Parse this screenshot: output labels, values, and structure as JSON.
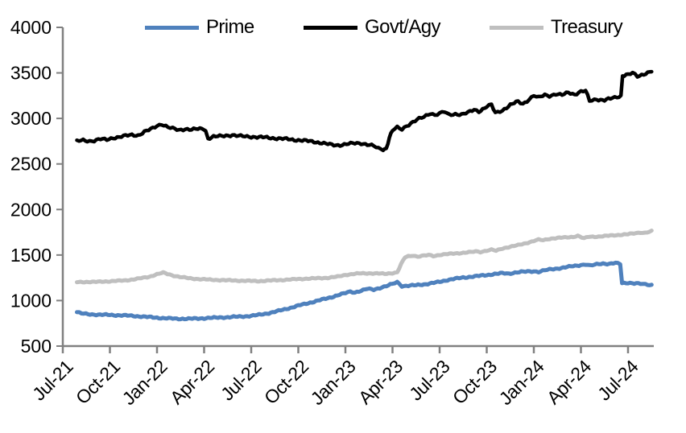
{
  "chart_data": {
    "type": "line",
    "title": "",
    "xlabel": "",
    "ylabel": "",
    "x_unit": "months since Jul-2021",
    "grid": false,
    "legend_position": "top",
    "axis_color": "#808080",
    "y_axis": {
      "min": 500,
      "max": 4000,
      "step": 500,
      "ticks": [
        4000,
        3500,
        3000,
        2500,
        2000,
        1500,
        1000,
        500
      ]
    },
    "x_axis": {
      "ticks": [
        {
          "label": "Jul-21",
          "m": 0
        },
        {
          "label": "Oct-21",
          "m": 3
        },
        {
          "label": "Jan-22",
          "m": 6
        },
        {
          "label": "Apr-22",
          "m": 9
        },
        {
          "label": "Jul-22",
          "m": 12
        },
        {
          "label": "Oct-22",
          "m": 15
        },
        {
          "label": "Jan-23",
          "m": 18
        },
        {
          "label": "Apr-23",
          "m": 21
        },
        {
          "label": "Jul-23",
          "m": 24
        },
        {
          "label": "Oct-23",
          "m": 27
        },
        {
          "label": "Jan-24",
          "m": 30
        },
        {
          "label": "Apr-24",
          "m": 33
        },
        {
          "label": "Jul-24",
          "m": 36
        }
      ]
    },
    "legend": [
      {
        "label": "Prime",
        "color": "#4F81BD"
      },
      {
        "label": "Govt/Agy",
        "color": "#000000"
      },
      {
        "label": "Treasury",
        "color": "#BFBFBF"
      }
    ],
    "series": [
      {
        "name": "Prime",
        "color": "#4F81BD",
        "width": 5,
        "points": [
          [
            0.9,
            872
          ],
          [
            1.2,
            858
          ],
          [
            1.6,
            850
          ],
          [
            2,
            847
          ],
          [
            2.5,
            844
          ],
          [
            3,
            842
          ],
          [
            3.5,
            839
          ],
          [
            4,
            836
          ],
          [
            4.5,
            831
          ],
          [
            5,
            825
          ],
          [
            5.5,
            818
          ],
          [
            6,
            812
          ],
          [
            6.5,
            806
          ],
          [
            7,
            802
          ],
          [
            7.5,
            800
          ],
          [
            8,
            800
          ],
          [
            8.5,
            802
          ],
          [
            9,
            806
          ],
          [
            9.5,
            810
          ],
          [
            10,
            814
          ],
          [
            10.5,
            817
          ],
          [
            11,
            821
          ],
          [
            11.5,
            826
          ],
          [
            12,
            832
          ],
          [
            12.5,
            843
          ],
          [
            13,
            858
          ],
          [
            13.5,
            876
          ],
          [
            14,
            898
          ],
          [
            14.5,
            920
          ],
          [
            15,
            944
          ],
          [
            15.5,
            966
          ],
          [
            16,
            988
          ],
          [
            16.5,
            1010
          ],
          [
            17,
            1032
          ],
          [
            17.5,
            1058
          ],
          [
            18,
            1082
          ],
          [
            18.3,
            1098
          ],
          [
            18.6,
            1090
          ],
          [
            19,
            1108
          ],
          [
            19.4,
            1128
          ],
          [
            19.8,
            1120
          ],
          [
            20.2,
            1140
          ],
          [
            20.6,
            1158
          ],
          [
            21,
            1182
          ],
          [
            21.3,
            1202
          ],
          [
            21.6,
            1160
          ],
          [
            22,
            1163
          ],
          [
            22.5,
            1168
          ],
          [
            23,
            1178
          ],
          [
            23.5,
            1190
          ],
          [
            24,
            1205
          ],
          [
            24.5,
            1226
          ],
          [
            25,
            1240
          ],
          [
            25.5,
            1252
          ],
          [
            26,
            1262
          ],
          [
            26.5,
            1270
          ],
          [
            27,
            1280
          ],
          [
            27.5,
            1292
          ],
          [
            28,
            1300
          ],
          [
            28.4,
            1296
          ],
          [
            28.8,
            1308
          ],
          [
            29.2,
            1314
          ],
          [
            29.6,
            1318
          ],
          [
            30,
            1322
          ],
          [
            30.3,
            1316
          ],
          [
            30.7,
            1332
          ],
          [
            31,
            1340
          ],
          [
            31.5,
            1352
          ],
          [
            32,
            1365
          ],
          [
            32.5,
            1378
          ],
          [
            33,
            1390
          ],
          [
            33.3,
            1398
          ],
          [
            33.6,
            1382
          ],
          [
            34,
            1398
          ],
          [
            34.4,
            1408
          ],
          [
            34.8,
            1402
          ],
          [
            35.2,
            1412
          ],
          [
            35.5,
            1400
          ],
          [
            35.62,
            1192
          ],
          [
            36,
            1196
          ],
          [
            36.4,
            1188
          ],
          [
            36.8,
            1183
          ],
          [
            37.1,
            1178
          ],
          [
            37.5,
            1172
          ]
        ]
      },
      {
        "name": "Govt/Agy",
        "color": "#000000",
        "width": 4.5,
        "points": [
          [
            0.9,
            2748
          ],
          [
            1.3,
            2760
          ],
          [
            1.7,
            2752
          ],
          [
            2,
            2758
          ],
          [
            2.4,
            2772
          ],
          [
            2.8,
            2765
          ],
          [
            3.2,
            2788
          ],
          [
            3.6,
            2796
          ],
          [
            4,
            2808
          ],
          [
            4.4,
            2820
          ],
          [
            4.8,
            2815
          ],
          [
            5.2,
            2852
          ],
          [
            5.6,
            2880
          ],
          [
            6,
            2920
          ],
          [
            6.3,
            2940
          ],
          [
            6.7,
            2902
          ],
          [
            7,
            2888
          ],
          [
            7.4,
            2872
          ],
          [
            7.8,
            2886
          ],
          [
            8.2,
            2876
          ],
          [
            8.6,
            2884
          ],
          [
            9,
            2886
          ],
          [
            9.1,
            2865
          ],
          [
            9.25,
            2778
          ],
          [
            9.6,
            2800
          ],
          [
            10,
            2803
          ],
          [
            10.4,
            2812
          ],
          [
            10.8,
            2818
          ],
          [
            11.2,
            2806
          ],
          [
            11.6,
            2802
          ],
          [
            12,
            2800
          ],
          [
            12.5,
            2794
          ],
          [
            13,
            2790
          ],
          [
            13.5,
            2783
          ],
          [
            14,
            2776
          ],
          [
            14.5,
            2770
          ],
          [
            15,
            2762
          ],
          [
            15.5,
            2753
          ],
          [
            16,
            2745
          ],
          [
            16.5,
            2730
          ],
          [
            17,
            2713
          ],
          [
            17.4,
            2706
          ],
          [
            17.8,
            2712
          ],
          [
            18.2,
            2720
          ],
          [
            18.6,
            2726
          ],
          [
            19,
            2728
          ],
          [
            19.4,
            2714
          ],
          [
            19.8,
            2697
          ],
          [
            20.1,
            2668
          ],
          [
            20.4,
            2660
          ],
          [
            20.6,
            2672
          ],
          [
            20.8,
            2790
          ],
          [
            21,
            2868
          ],
          [
            21.3,
            2898
          ],
          [
            21.6,
            2880
          ],
          [
            21.9,
            2920
          ],
          [
            22.3,
            2962
          ],
          [
            22.7,
            2995
          ],
          [
            23,
            3015
          ],
          [
            23.4,
            3058
          ],
          [
            23.7,
            3040
          ],
          [
            24,
            3055
          ],
          [
            24.3,
            3072
          ],
          [
            24.6,
            3036
          ],
          [
            25,
            3050
          ],
          [
            25.4,
            3044
          ],
          [
            25.8,
            3062
          ],
          [
            26.2,
            3095
          ],
          [
            26.5,
            3078
          ],
          [
            27,
            3130
          ],
          [
            27.3,
            3148
          ],
          [
            27.55,
            3058
          ],
          [
            28,
            3090
          ],
          [
            28.5,
            3148
          ],
          [
            29,
            3185
          ],
          [
            29.3,
            3160
          ],
          [
            29.7,
            3210
          ],
          [
            30,
            3252
          ],
          [
            30.3,
            3226
          ],
          [
            30.7,
            3258
          ],
          [
            31,
            3250
          ],
          [
            31.4,
            3268
          ],
          [
            31.8,
            3255
          ],
          [
            32.2,
            3285
          ],
          [
            32.6,
            3265
          ],
          [
            33,
            3295
          ],
          [
            33.3,
            3302
          ],
          [
            33.55,
            3192
          ],
          [
            34,
            3212
          ],
          [
            34.5,
            3200
          ],
          [
            35,
            3222
          ],
          [
            35.3,
            3235
          ],
          [
            35.55,
            3250
          ],
          [
            35.65,
            3472
          ],
          [
            36,
            3480
          ],
          [
            36.3,
            3496
          ],
          [
            36.6,
            3462
          ],
          [
            37,
            3488
          ],
          [
            37.5,
            3518
          ]
        ]
      },
      {
        "name": "Treasury",
        "color": "#BFBFBF",
        "width": 5,
        "points": [
          [
            0.9,
            1202
          ],
          [
            1.5,
            1205
          ],
          [
            2,
            1204
          ],
          [
            2.5,
            1208
          ],
          [
            3,
            1212
          ],
          [
            3.5,
            1216
          ],
          [
            4,
            1222
          ],
          [
            4.5,
            1232
          ],
          [
            5,
            1246
          ],
          [
            5.5,
            1262
          ],
          [
            6,
            1288
          ],
          [
            6.4,
            1306
          ],
          [
            6.8,
            1286
          ],
          [
            7.2,
            1268
          ],
          [
            7.6,
            1255
          ],
          [
            8,
            1246
          ],
          [
            8.5,
            1238
          ],
          [
            9,
            1232
          ],
          [
            9.5,
            1228
          ],
          [
            10,
            1225
          ],
          [
            10.5,
            1222
          ],
          [
            11,
            1220
          ],
          [
            11.5,
            1217
          ],
          [
            12,
            1215
          ],
          [
            12.5,
            1214
          ],
          [
            13,
            1218
          ],
          [
            13.5,
            1222
          ],
          [
            14,
            1226
          ],
          [
            14.5,
            1231
          ],
          [
            15,
            1236
          ],
          [
            15.5,
            1240
          ],
          [
            16,
            1243
          ],
          [
            16.5,
            1247
          ],
          [
            17,
            1252
          ],
          [
            17.5,
            1262
          ],
          [
            18,
            1282
          ],
          [
            18.5,
            1292
          ],
          [
            19,
            1298
          ],
          [
            19.5,
            1300
          ],
          [
            20,
            1297
          ],
          [
            20.5,
            1294
          ],
          [
            21,
            1302
          ],
          [
            21.3,
            1308
          ],
          [
            21.55,
            1400
          ],
          [
            21.8,
            1475
          ],
          [
            22,
            1488
          ],
          [
            22.3,
            1495
          ],
          [
            22.6,
            1482
          ],
          [
            23,
            1492
          ],
          [
            23.3,
            1500
          ],
          [
            23.6,
            1489
          ],
          [
            24,
            1502
          ],
          [
            24.5,
            1510
          ],
          [
            25,
            1518
          ],
          [
            25.5,
            1524
          ],
          [
            26,
            1532
          ],
          [
            26.3,
            1540
          ],
          [
            26.6,
            1534
          ],
          [
            27,
            1548
          ],
          [
            27.3,
            1558
          ],
          [
            27.6,
            1546
          ],
          [
            28,
            1572
          ],
          [
            28.5,
            1592
          ],
          [
            29,
            1608
          ],
          [
            29.5,
            1630
          ],
          [
            30,
            1655
          ],
          [
            30.3,
            1668
          ],
          [
            30.6,
            1662
          ],
          [
            31,
            1678
          ],
          [
            31.5,
            1688
          ],
          [
            32,
            1692
          ],
          [
            32.5,
            1700
          ],
          [
            32.8,
            1712
          ],
          [
            33.2,
            1682
          ],
          [
            33.5,
            1700
          ],
          [
            34,
            1702
          ],
          [
            34.5,
            1708
          ],
          [
            35,
            1715
          ],
          [
            35.5,
            1722
          ],
          [
            36,
            1728
          ],
          [
            36.5,
            1740
          ],
          [
            36.8,
            1748
          ],
          [
            37.1,
            1744
          ],
          [
            37.5,
            1762
          ]
        ]
      }
    ]
  }
}
